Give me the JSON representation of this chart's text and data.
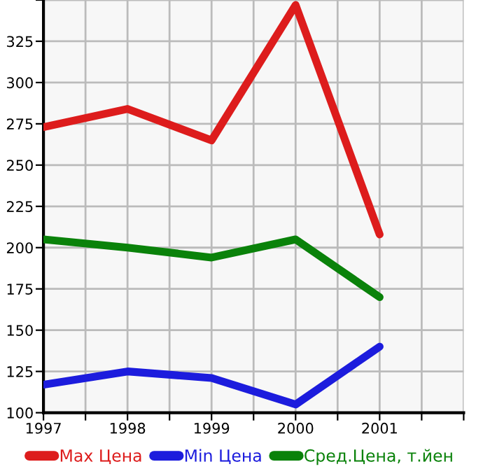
{
  "chart_data": {
    "type": "line",
    "x": [
      1997,
      1998,
      1999,
      2000,
      2001
    ],
    "series": [
      {
        "name": "Max Цена",
        "color": "#dd1c1c",
        "values": [
          273,
          284,
          265,
          347,
          208
        ]
      },
      {
        "name": "Min Цена",
        "color": "#1c1cdd",
        "values": [
          117,
          125,
          121,
          105,
          140
        ]
      },
      {
        "name": "Сред.Цена, т.йен",
        "color": "#0a820a",
        "values": [
          205,
          200,
          194,
          205,
          170
        ]
      }
    ],
    "xlim": [
      1997,
      2002
    ],
    "xticks": [
      1997,
      {
        "value": 1997.5,
        "label": null
      },
      1998,
      {
        "value": 1998.5,
        "label": null
      },
      1999,
      {
        "value": 1999.5,
        "label": null
      },
      2000,
      {
        "value": 2000.5,
        "label": null
      },
      2001,
      {
        "value": 2001.5,
        "label": null
      },
      {
        "value": 2002,
        "label": null
      }
    ],
    "ylim": [
      100,
      350
    ],
    "yticks": [
      100,
      125,
      150,
      175,
      200,
      225,
      250,
      275,
      300,
      325,
      {
        "value": 350,
        "label": null
      }
    ],
    "grid": true,
    "legend": "bottom",
    "marker": "none",
    "line_style": "solid"
  }
}
